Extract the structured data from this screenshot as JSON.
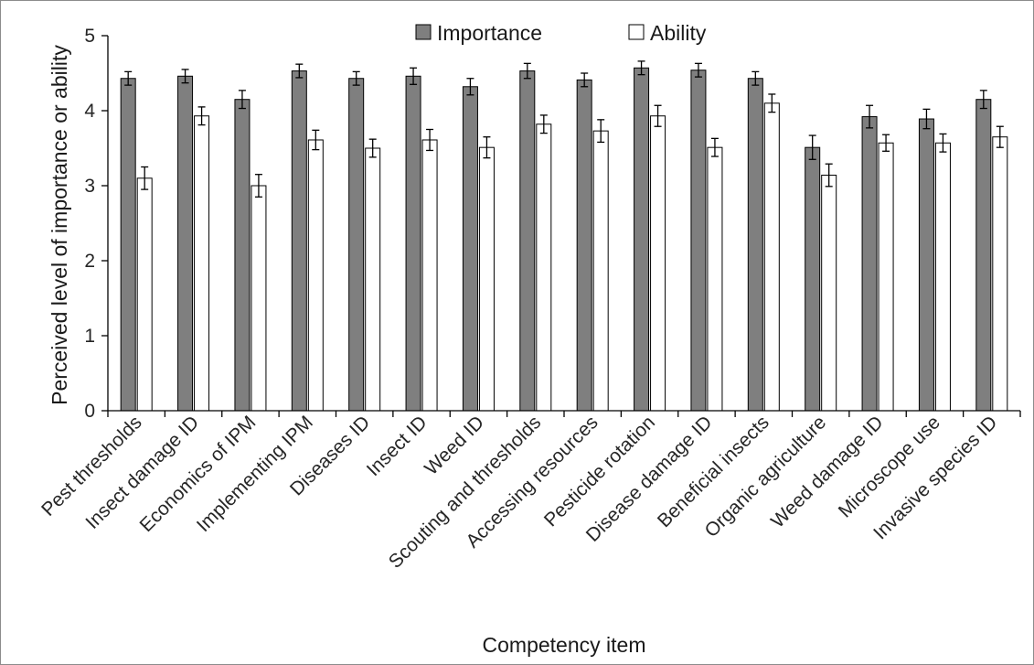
{
  "chart_data": {
    "type": "bar",
    "title": "",
    "xlabel": "Competency item",
    "ylabel": "Perceived level of importance or ability",
    "ylim": [
      0,
      5
    ],
    "yticks": [
      "0",
      "1",
      "2",
      "3",
      "4",
      "5"
    ],
    "grid": false,
    "legend_position": "top-center",
    "categories": [
      "Pest thresholds",
      "Insect damage ID",
      "Economics of IPM",
      "Implementing IPM",
      "Diseases ID",
      "Insect ID",
      "Weed ID",
      "Scouting and thresholds",
      "Accessing resources",
      "Pesticide rotation",
      "Disease damage ID",
      "Beneficial insects",
      "Organic agriculture",
      "Weed damage ID",
      "Microscope use",
      "Invasive species ID"
    ],
    "series": [
      {
        "name": "Importance",
        "color": "#7f7f7f",
        "values": [
          4.43,
          4.46,
          4.15,
          4.53,
          4.43,
          4.46,
          4.32,
          4.53,
          4.41,
          4.57,
          4.54,
          4.43,
          3.51,
          3.92,
          3.89,
          4.15
        ],
        "errors": [
          0.09,
          0.09,
          0.12,
          0.09,
          0.09,
          0.11,
          0.11,
          0.1,
          0.09,
          0.09,
          0.09,
          0.09,
          0.16,
          0.15,
          0.13,
          0.12
        ]
      },
      {
        "name": "Ability",
        "color": "#ffffff",
        "values": [
          3.1,
          3.93,
          3.0,
          3.61,
          3.5,
          3.61,
          3.51,
          3.82,
          3.73,
          3.93,
          3.51,
          4.1,
          3.14,
          3.57,
          3.57,
          3.65
        ],
        "errors": [
          0.15,
          0.12,
          0.15,
          0.13,
          0.12,
          0.14,
          0.14,
          0.12,
          0.15,
          0.14,
          0.12,
          0.12,
          0.15,
          0.11,
          0.12,
          0.14
        ]
      }
    ]
  }
}
